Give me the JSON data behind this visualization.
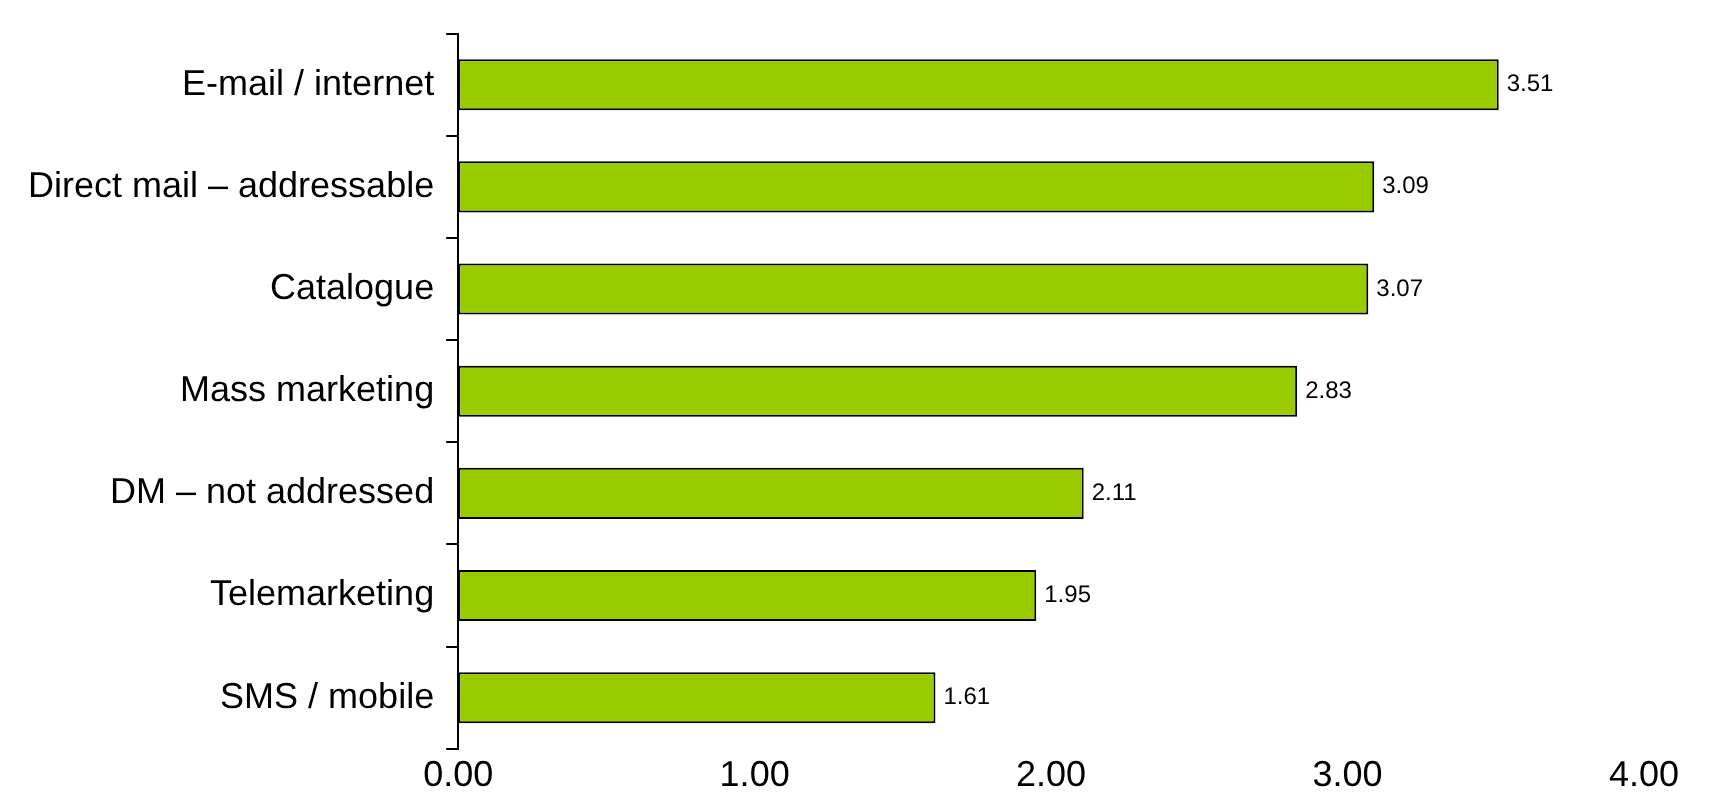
{
  "chart_data": {
    "type": "bar",
    "orientation": "horizontal",
    "categories": [
      "E-mail / internet",
      "Direct mail – addressable",
      "Catalogue",
      "Mass marketing",
      "DM – not addressed",
      "Telemarketing",
      "SMS / mobile"
    ],
    "values": [
      3.51,
      3.09,
      3.07,
      2.83,
      2.11,
      1.95,
      1.61
    ],
    "color": "#99cc00",
    "xlim": [
      0,
      4
    ],
    "xticks": [
      {
        "value": 0,
        "label": "0.00"
      },
      {
        "value": 1,
        "label": "1.00"
      },
      {
        "value": 2,
        "label": "2.00"
      },
      {
        "value": 3,
        "label": "3.00"
      },
      {
        "value": 4,
        "label": "4.00"
      }
    ],
    "data_labels": true
  }
}
